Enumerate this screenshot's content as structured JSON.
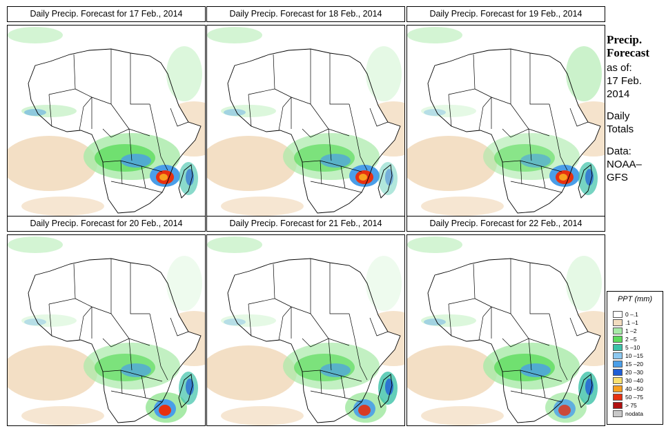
{
  "panels": [
    {
      "title": "Daily Precip. Forecast for  17 Feb., 2014",
      "rain": [
        {
          "region": "central",
          "level": 0.8
        },
        {
          "region": "mozambique",
          "level": 1.0
        },
        {
          "region": "madagascar",
          "level": 0.6
        },
        {
          "region": "west-coast",
          "level": 0.5
        },
        {
          "region": "east-cloud",
          "level": 0.4
        }
      ]
    },
    {
      "title": "Daily Precip. Forecast for  18 Feb., 2014",
      "rain": [
        {
          "region": "central",
          "level": 0.7
        },
        {
          "region": "mozambique",
          "level": 1.0
        },
        {
          "region": "madagascar",
          "level": 0.4
        },
        {
          "region": "west-coast",
          "level": 0.4
        },
        {
          "region": "east-cloud",
          "level": 0.3
        }
      ]
    },
    {
      "title": "Daily Precip. Forecast for  19 Feb., 2014",
      "rain": [
        {
          "region": "central",
          "level": 0.6
        },
        {
          "region": "mozambique",
          "level": 1.0
        },
        {
          "region": "madagascar",
          "level": 0.7
        },
        {
          "region": "west-coast",
          "level": 0.3
        },
        {
          "region": "east-cloud",
          "level": 0.6
        }
      ]
    },
    {
      "title": "Daily Precip. Forecast for  20 Feb., 2014",
      "rain": [
        {
          "region": "central",
          "level": 0.7
        },
        {
          "region": "southeast-ocean",
          "level": 1.0
        },
        {
          "region": "madagascar",
          "level": 0.7
        },
        {
          "region": "west-coast",
          "level": 0.3
        },
        {
          "region": "east-cloud",
          "level": 0.2
        }
      ]
    },
    {
      "title": "Daily Precip. Forecast for  21 Feb., 2014",
      "rain": [
        {
          "region": "central",
          "level": 0.7
        },
        {
          "region": "southeast-ocean",
          "level": 0.9
        },
        {
          "region": "madagascar",
          "level": 0.8
        },
        {
          "region": "west-coast",
          "level": 0.3
        },
        {
          "region": "east-cloud",
          "level": 0.2
        }
      ]
    },
    {
      "title": "Daily Precip. Forecast for  22 Feb., 2014",
      "rain": [
        {
          "region": "central",
          "level": 0.8
        },
        {
          "region": "southeast-ocean",
          "level": 0.8
        },
        {
          "region": "madagascar",
          "level": 0.8
        },
        {
          "region": "west-coast",
          "level": 0.4
        },
        {
          "region": "east-cloud",
          "level": 0.3
        }
      ]
    }
  ],
  "side": {
    "heading_line1": "Precip.",
    "heading_line2": "Forecast",
    "as_of": "as of:",
    "date_line1": "17 Feb.",
    "date_line2": "2014",
    "daily_line1": "Daily",
    "daily_line2": "Totals",
    "data_line1": "Data:",
    "data_line2": "NOAA–",
    "data_line3": "GFS"
  },
  "legend": {
    "title": "PPT (mm)",
    "items": [
      {
        "label": "0 –.1",
        "color": "#ffffff"
      },
      {
        "label": ".1 –1",
        "color": "#f2dcbf"
      },
      {
        "label": "1 –2",
        "color": "#a8eaa8"
      },
      {
        "label": "2 –5",
        "color": "#5edc5e"
      },
      {
        "label": "5 –10",
        "color": "#3cc2a8"
      },
      {
        "label": "10 –15",
        "color": "#8cc8f0"
      },
      {
        "label": "15 –20",
        "color": "#4a9ee8"
      },
      {
        "label": "20 –30",
        "color": "#1e5ed6"
      },
      {
        "label": "30 –40",
        "color": "#f8e070"
      },
      {
        "label": "40 –50",
        "color": "#f8a020"
      },
      {
        "label": "50 –75",
        "color": "#e63010"
      },
      {
        "label": "> 75",
        "color": "#b01010"
      },
      {
        "label": "nodata",
        "color": "#c8c8c8"
      }
    ]
  },
  "colors": {
    "dry": "#f2dcbf",
    "light": "#a8eaa8",
    "moderate": "#5edc5e",
    "teal": "#3cc2a8",
    "blue": "#4a9ee8",
    "darkblue": "#1e5ed6",
    "red": "#e63010",
    "orange": "#f8a020"
  }
}
